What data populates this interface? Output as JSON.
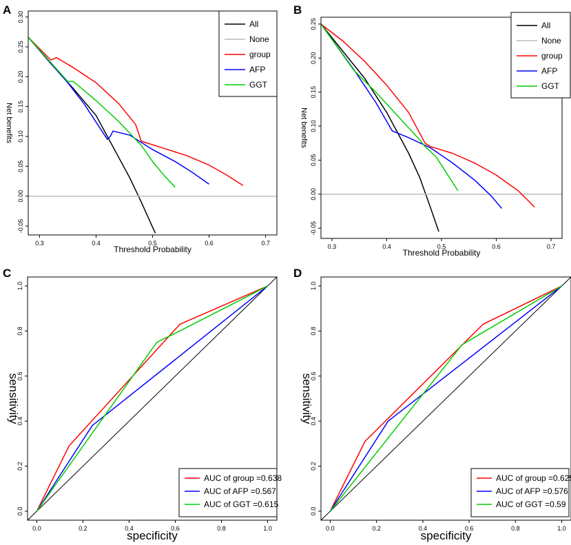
{
  "panels": [
    {
      "label": "A",
      "chart_data": {
        "type": "line",
        "xlabel": "Threshold  Probability",
        "ylabel": "Net benefits",
        "xlim": [
          0.28,
          0.72
        ],
        "ylim": [
          -0.065,
          0.31
        ],
        "xticks": [
          "0.3",
          "0.4",
          "0.5",
          "0.6",
          "0.7"
        ],
        "yticks": [
          "-0.05",
          "0.00",
          "0.05",
          "0.10",
          "0.15",
          "0.20",
          "0.25",
          "0.30"
        ],
        "legend_position": "top-right",
        "series": [
          {
            "name": "All",
            "color": "#000000",
            "x": [
              0.28,
              0.32,
              0.36,
              0.4,
              0.42,
              0.44,
              0.46,
              0.48,
              0.5,
              0.505
            ],
            "y": [
              0.266,
              0.222,
              0.18,
              0.135,
              0.1,
              0.065,
              0.03,
              -0.01,
              -0.052,
              -0.062
            ]
          },
          {
            "name": "None",
            "color": "#bbbbbb",
            "x": [
              0.28,
              0.72
            ],
            "y": [
              0.0,
              0.0
            ]
          },
          {
            "name": "group",
            "color": "#ff0000",
            "x": [
              0.28,
              0.32,
              0.33,
              0.36,
              0.4,
              0.44,
              0.47,
              0.48,
              0.49,
              0.52,
              0.56,
              0.6,
              0.63,
              0.66
            ],
            "y": [
              0.266,
              0.228,
              0.232,
              0.215,
              0.19,
              0.155,
              0.12,
              0.092,
              0.089,
              0.08,
              0.068,
              0.052,
              0.036,
              0.018
            ]
          },
          {
            "name": "AFP",
            "color": "#0000ff",
            "x": [
              0.28,
              0.35,
              0.38,
              0.42,
              0.425,
              0.43,
              0.46,
              0.5,
              0.54,
              0.57,
              0.6
            ],
            "y": [
              0.266,
              0.19,
              0.153,
              0.095,
              0.1,
              0.109,
              0.102,
              0.078,
              0.058,
              0.04,
              0.02
            ]
          },
          {
            "name": "GGT",
            "color": "#00cc00",
            "x": [
              0.28,
              0.35,
              0.36,
              0.4,
              0.44,
              0.48,
              0.5,
              0.52,
              0.54
            ],
            "y": [
              0.266,
              0.192,
              0.192,
              0.16,
              0.125,
              0.085,
              0.058,
              0.035,
              0.015
            ]
          }
        ]
      }
    },
    {
      "label": "B",
      "chart_data": {
        "type": "line",
        "xlabel": "Threshold  Probability",
        "ylabel": "Net benefits",
        "xlim": [
          0.28,
          0.72
        ],
        "ylim": [
          -0.065,
          0.26
        ],
        "xticks": [
          "0.3",
          "0.4",
          "0.5",
          "0.6",
          "0.7"
        ],
        "yticks": [
          "-0.05",
          "0.00",
          "0.05",
          "0.10",
          "0.15",
          "0.20",
          "0.25"
        ],
        "legend_position": "top-right",
        "series": [
          {
            "name": "All",
            "color": "#000000",
            "x": [
              0.28,
              0.32,
              0.36,
              0.4,
              0.42,
              0.44,
              0.46,
              0.48,
              0.495
            ],
            "y": [
              0.25,
              0.21,
              0.17,
              0.12,
              0.09,
              0.06,
              0.025,
              -0.02,
              -0.055
            ]
          },
          {
            "name": "None",
            "color": "#bbbbbb",
            "x": [
              0.28,
              0.72
            ],
            "y": [
              0.0,
              0.0
            ]
          },
          {
            "name": "group",
            "color": "#ff0000",
            "x": [
              0.28,
              0.32,
              0.36,
              0.4,
              0.44,
              0.47,
              0.48,
              0.52,
              0.56,
              0.6,
              0.64,
              0.67
            ],
            "y": [
              0.25,
              0.225,
              0.195,
              0.16,
              0.12,
              0.075,
              0.07,
              0.06,
              0.046,
              0.028,
              0.005,
              -0.019
            ]
          },
          {
            "name": "AFP",
            "color": "#0000ff",
            "x": [
              0.28,
              0.34,
              0.38,
              0.41,
              0.44,
              0.48,
              0.52,
              0.56,
              0.59,
              0.61
            ],
            "y": [
              0.25,
              0.183,
              0.135,
              0.093,
              0.083,
              0.068,
              0.046,
              0.021,
              -0.002,
              -0.021
            ]
          },
          {
            "name": "GGT",
            "color": "#00cc00",
            "x": [
              0.28,
              0.34,
              0.38,
              0.42,
              0.46,
              0.47,
              0.49,
              0.51,
              0.53
            ],
            "y": [
              0.25,
              0.182,
              0.15,
              0.115,
              0.08,
              0.07,
              0.055,
              0.03,
              0.005
            ]
          }
        ]
      }
    },
    {
      "label": "C",
      "chart_data": {
        "type": "line",
        "xlabel": "specificity",
        "ylabel": "sensitivity",
        "xlim": [
          -0.04,
          1.04
        ],
        "ylim": [
          -0.04,
          1.04
        ],
        "xticks": [
          "0.0",
          "0.2",
          "0.4",
          "0.6",
          "0.8",
          "1.0"
        ],
        "yticks": [
          "0.0",
          "0.2",
          "0.4",
          "0.6",
          "0.8",
          "1.0"
        ],
        "legend_position": "bottom-right",
        "diagonal": {
          "color": "#000000",
          "x": [
            -0.04,
            1.04
          ],
          "y": [
            -0.04,
            1.04
          ]
        },
        "series": [
          {
            "name": "AUC of group =0.638",
            "color": "#ff0000",
            "x": [
              0.0,
              0.14,
              0.62,
              1.0
            ],
            "y": [
              0.0,
              0.29,
              0.83,
              1.0
            ]
          },
          {
            "name": "AUC of AFP =0.567",
            "color": "#0000ff",
            "x": [
              0.0,
              0.24,
              1.0
            ],
            "y": [
              0.0,
              0.38,
              1.0
            ]
          },
          {
            "name": "AUC of GGT =0.615",
            "color": "#00cc00",
            "x": [
              0.0,
              0.52,
              0.6,
              1.0
            ],
            "y": [
              0.0,
              0.75,
              0.79,
              1.0
            ]
          }
        ]
      }
    },
    {
      "label": "D",
      "chart_data": {
        "type": "line",
        "xlabel": "specificity",
        "ylabel": "sensitivity",
        "xlim": [
          -0.04,
          1.04
        ],
        "ylim": [
          -0.04,
          1.04
        ],
        "xticks": [
          "0.0",
          "0.2",
          "0.4",
          "0.6",
          "0.8",
          "1.0"
        ],
        "yticks": [
          "0.0",
          "0.2",
          "0.4",
          "0.6",
          "0.8",
          "1.0"
        ],
        "legend_position": "bottom-right",
        "diagonal": {
          "color": "#000000",
          "x": [
            -0.04,
            1.04
          ],
          "y": [
            -0.04,
            1.04
          ]
        },
        "series": [
          {
            "name": "AUC of group =0.625",
            "color": "#ff0000",
            "x": [
              0.0,
              0.15,
              0.66,
              1.0
            ],
            "y": [
              0.0,
              0.31,
              0.83,
              1.0
            ]
          },
          {
            "name": "AUC of AFP =0.576",
            "color": "#0000ff",
            "x": [
              0.0,
              0.25,
              1.0
            ],
            "y": [
              0.0,
              0.4,
              1.0
            ]
          },
          {
            "name": "AUC of GGT =0.59",
            "color": "#00cc00",
            "x": [
              0.0,
              0.57,
              0.62,
              1.0
            ],
            "y": [
              0.0,
              0.74,
              0.77,
              1.0
            ]
          }
        ]
      }
    }
  ]
}
